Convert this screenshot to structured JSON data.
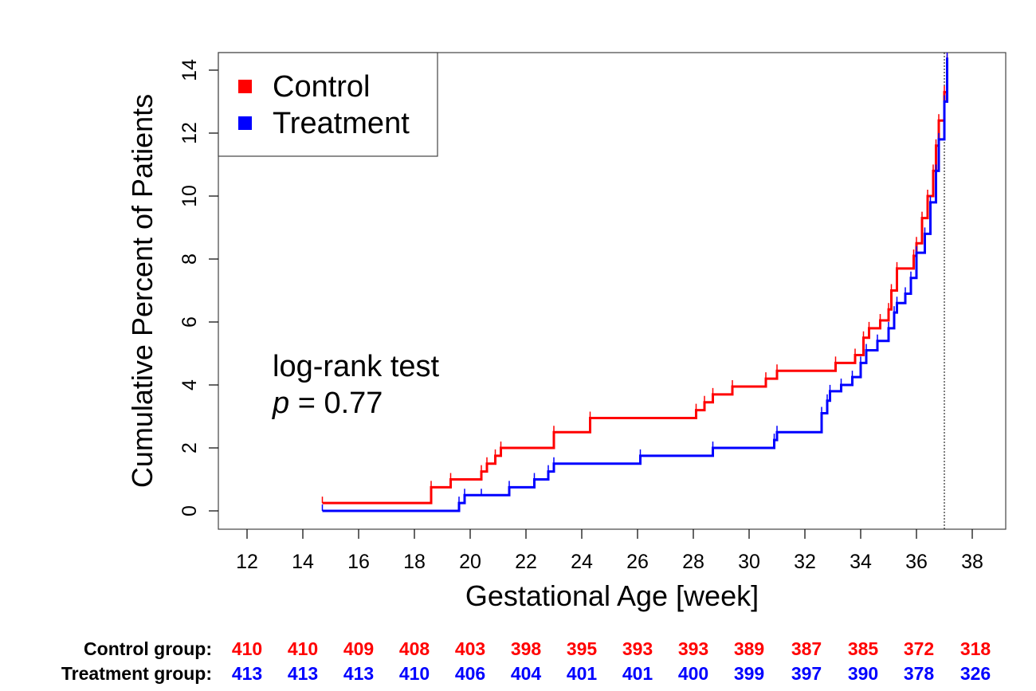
{
  "chart_data": {
    "type": "line",
    "xlabel": "Gestational Age [week]",
    "ylabel": "Cumulative Percent of Patients",
    "xlim": [
      12,
      38
    ],
    "ylim": [
      0,
      14
    ],
    "xticks": [
      "12",
      "14",
      "16",
      "18",
      "20",
      "22",
      "24",
      "26",
      "28",
      "30",
      "32",
      "34",
      "36",
      "38"
    ],
    "yticks": [
      "0",
      "2",
      "4",
      "6",
      "8",
      "10",
      "12",
      "14"
    ],
    "reference_line_x": 37,
    "legend_position": "top-left",
    "annotation": {
      "line1": "log-rank test",
      "p_symbol": "p",
      "p_rest": " = 0.77"
    },
    "series": [
      {
        "name": "Control",
        "color": "#ff0000",
        "x": [
          14.7,
          18.6,
          19.3,
          20.4,
          20.6,
          20.9,
          21.1,
          23.0,
          24.3,
          28.1,
          28.4,
          28.7,
          29.4,
          30.6,
          31.0,
          33.1,
          33.8,
          34.1,
          34.3,
          34.7,
          35.0,
          35.1,
          35.3,
          35.9,
          36.0,
          36.2,
          36.4,
          36.6,
          36.7,
          36.8,
          37.0,
          37.1
        ],
        "y": [
          0.25,
          0.75,
          1.0,
          1.25,
          1.5,
          1.75,
          2.0,
          2.5,
          2.95,
          3.2,
          3.45,
          3.7,
          3.95,
          4.2,
          4.45,
          4.7,
          4.95,
          5.5,
          5.8,
          6.05,
          6.4,
          7.0,
          7.7,
          8.1,
          8.5,
          9.3,
          10.0,
          10.8,
          11.6,
          12.4,
          13.3,
          14.4
        ]
      },
      {
        "name": "Treatment",
        "color": "#0000ff",
        "x": [
          14.7,
          19.6,
          19.8,
          20.4,
          21.4,
          22.3,
          22.8,
          23.0,
          26.1,
          28.7,
          30.9,
          31.0,
          32.6,
          32.8,
          32.9,
          33.3,
          33.7,
          34.0,
          34.2,
          34.6,
          35.0,
          35.2,
          35.3,
          35.6,
          35.8,
          36.0,
          36.3,
          36.5,
          36.7,
          36.8,
          37.0,
          37.1
        ],
        "y": [
          0.0,
          0.25,
          0.5,
          0.5,
          0.75,
          1.0,
          1.25,
          1.5,
          1.75,
          2.0,
          2.25,
          2.5,
          3.1,
          3.5,
          3.8,
          4.0,
          4.25,
          4.7,
          5.1,
          5.4,
          5.8,
          6.3,
          6.6,
          6.9,
          7.4,
          8.2,
          8.8,
          9.8,
          10.8,
          11.8,
          13.0,
          14.4
        ]
      }
    ]
  },
  "risk_table": {
    "rows": [
      {
        "label": "Control group:",
        "color": "#ff0000",
        "values": [
          "410",
          "410",
          "409",
          "408",
          "403",
          "398",
          "395",
          "393",
          "393",
          "389",
          "387",
          "385",
          "372",
          "318"
        ]
      },
      {
        "label": "Treatment group:",
        "color": "#0000ff",
        "values": [
          "413",
          "413",
          "413",
          "410",
          "406",
          "404",
          "401",
          "401",
          "400",
          "399",
          "397",
          "390",
          "378",
          "326"
        ]
      }
    ]
  }
}
